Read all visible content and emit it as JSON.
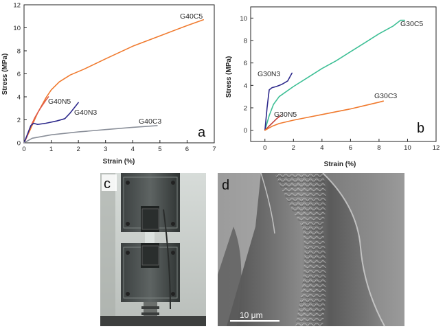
{
  "chart_data": [
    {
      "type": "line",
      "panel_label": "a",
      "xlabel": "Strain (%)",
      "ylabel": "Stress (MPa)",
      "xlim": [
        0,
        7
      ],
      "ylim": [
        0,
        12
      ],
      "xticks": [
        "0",
        "1",
        "2",
        "3",
        "4",
        "5",
        "6",
        "7"
      ],
      "yticks": [
        "0",
        "2",
        "4",
        "6",
        "8",
        "10",
        "12"
      ],
      "series": [
        {
          "name": "G40C5",
          "color": "#f07a2e",
          "x": [
            0,
            0.2,
            0.5,
            0.8,
            1.0,
            1.3,
            1.7,
            2.2,
            3.0,
            4.0,
            5.0,
            6.0,
            6.6
          ],
          "y": [
            0,
            1.0,
            2.6,
            3.9,
            4.6,
            5.3,
            5.9,
            6.4,
            7.3,
            8.4,
            9.3,
            10.2,
            10.7
          ]
        },
        {
          "name": "G40N5",
          "color": "#e05a4a",
          "x": [
            0,
            0.1,
            0.2,
            0.4,
            0.6,
            0.8,
            0.9
          ],
          "y": [
            0,
            0.5,
            1.2,
            2.2,
            3.0,
            3.7,
            4.0
          ]
        },
        {
          "name": "G40N3",
          "color": "#2e2a8c",
          "x": [
            0,
            0.1,
            0.25,
            0.35,
            0.5,
            0.8,
            1.2,
            1.5,
            1.7,
            1.9,
            2.0
          ],
          "y": [
            0,
            0.6,
            1.5,
            1.7,
            1.6,
            1.7,
            1.9,
            2.1,
            2.6,
            3.2,
            3.5
          ]
        },
        {
          "name": "G40C3",
          "color": "#8a8f99",
          "x": [
            0,
            0.3,
            1.0,
            2.0,
            3.0,
            4.0,
            4.9
          ],
          "y": [
            0,
            0.4,
            0.7,
            0.95,
            1.15,
            1.35,
            1.5
          ]
        }
      ]
    },
    {
      "type": "line",
      "panel_label": "b",
      "xlabel": "Strain (%)",
      "ylabel": "Stress (MPa)",
      "xlim": [
        -1,
        12
      ],
      "ylim": [
        -1,
        11
      ],
      "xticks": [
        "0",
        "2",
        "4",
        "6",
        "8",
        "10",
        "12"
      ],
      "yticks": [
        "0",
        "2",
        "4",
        "6",
        "8",
        "10"
      ],
      "series": [
        {
          "name": "G30C5",
          "color": "#3dbf95",
          "x": [
            0,
            0.3,
            0.6,
            1.0,
            2.0,
            3.0,
            4.0,
            5.0,
            6.0,
            7.0,
            8.0,
            9.0,
            9.5,
            9.8
          ],
          "y": [
            0,
            1.3,
            2.3,
            3.0,
            3.9,
            4.7,
            5.5,
            6.2,
            7.0,
            7.8,
            8.6,
            9.3,
            9.8,
            9.8
          ]
        },
        {
          "name": "G30N3",
          "color": "#2e2a8c",
          "x": [
            0,
            0.15,
            0.3,
            0.5,
            0.8,
            1.2,
            1.6,
            1.9
          ],
          "y": [
            0,
            2.0,
            3.6,
            3.8,
            3.9,
            4.1,
            4.4,
            5.1
          ]
        },
        {
          "name": "G30N5",
          "color": "#c2423d",
          "x": [
            0,
            0.4,
            0.8,
            1.1
          ],
          "y": [
            0,
            0.5,
            1.0,
            1.3
          ]
        },
        {
          "name": "G30C3",
          "color": "#f07a2e",
          "x": [
            0,
            0.5,
            1.0,
            2.0,
            3.0,
            4.0,
            5.0,
            6.0,
            7.0,
            8.0,
            8.3
          ],
          "y": [
            0,
            0.35,
            0.6,
            0.9,
            1.15,
            1.4,
            1.65,
            1.9,
            2.2,
            2.5,
            2.6
          ]
        }
      ]
    }
  ],
  "photos": {
    "c": {
      "label": "c"
    },
    "d": {
      "label": "d",
      "scale_bar": "10 μm"
    }
  }
}
